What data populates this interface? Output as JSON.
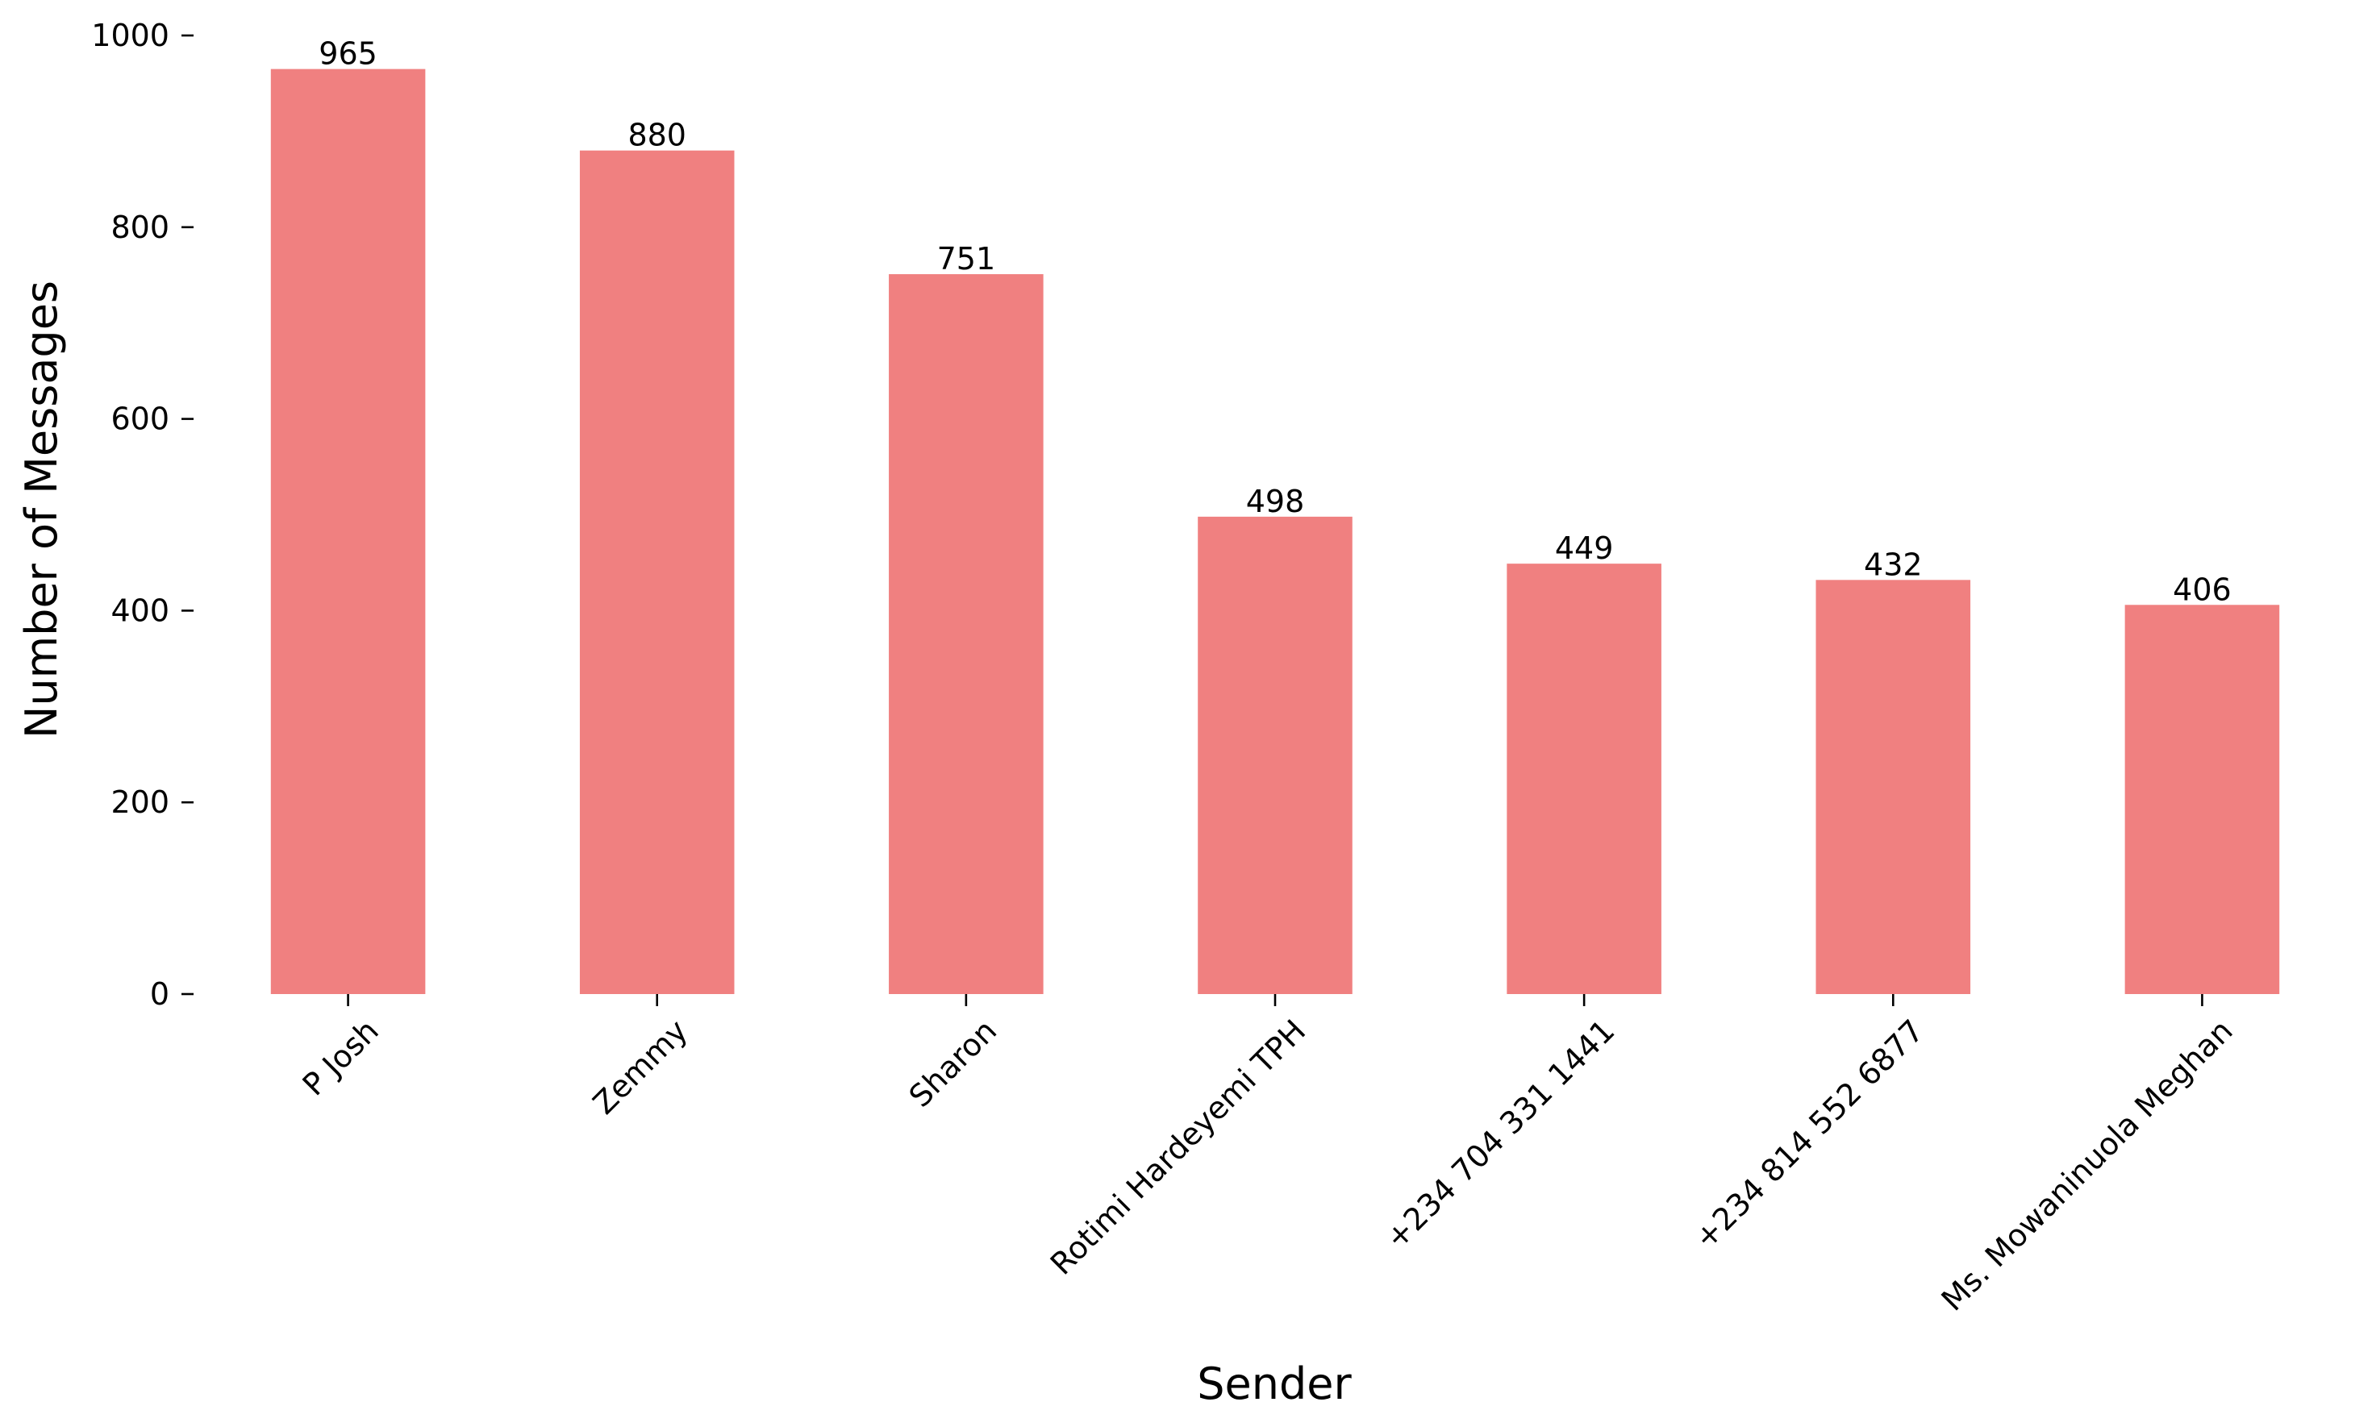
{
  "chart_data": {
    "type": "bar",
    "title": "",
    "xlabel": "Sender",
    "ylabel": "Number of Messages",
    "categories": [
      "P Josh",
      "Zemmy",
      "Sharon",
      "Rotimi Hardeyemi TPH",
      "+234 704 331 1441",
      "+234 814 552 6877",
      "Ms. Mowaninuola Meghan"
    ],
    "values": [
      965,
      880,
      751,
      498,
      449,
      432,
      406
    ],
    "data_labels": [
      "965",
      "880",
      "751",
      "498",
      "449",
      "432",
      "406"
    ],
    "ylim": [
      0,
      1000
    ],
    "yticks": [
      0,
      200,
      400,
      600,
      800,
      1000
    ],
    "ytick_labels": [
      "0",
      "200",
      "400",
      "600",
      "800",
      "1000"
    ],
    "grid": false,
    "legend": "none",
    "bar_color": "#f08080"
  }
}
